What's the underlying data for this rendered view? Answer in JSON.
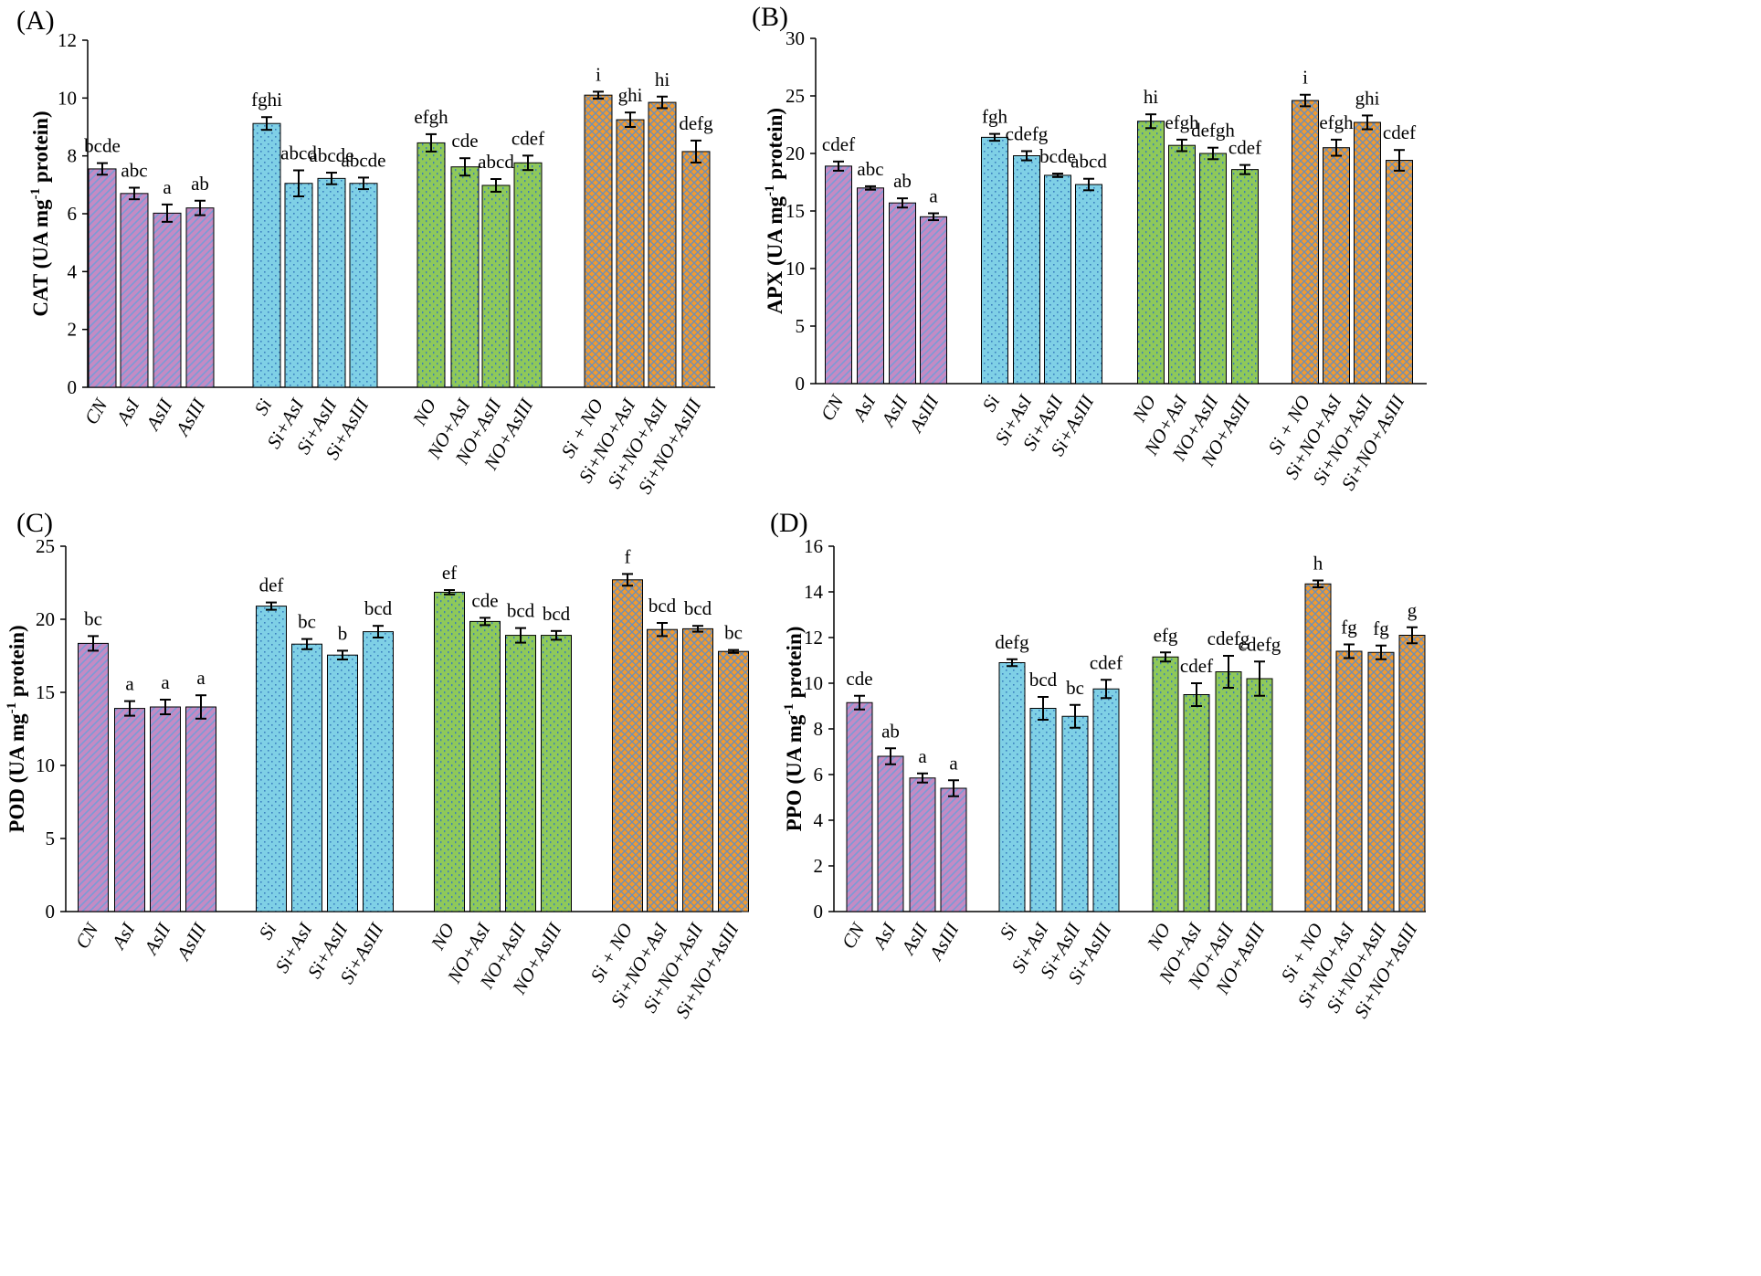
{
  "figure": {
    "categories": [
      "CN",
      "AsI",
      "AsII",
      "AsIII",
      "Si",
      "Si+AsI",
      "Si+AsII",
      "Si+AsIII",
      "NO",
      "NO+AsI",
      "NO+AsII",
      "NO+AsIII",
      "Si + NO",
      "Si+NO+AsI",
      "Si+NO+AsII",
      "Si+NO+AsIII"
    ],
    "groups": [
      {
        "name": "As",
        "color": "#c48bc4",
        "hatch": "#7a9bd6",
        "pattern": "diag"
      },
      {
        "name": "Si",
        "color": "#7fd0e6",
        "hatch": "#3a7fbf",
        "pattern": "dots"
      },
      {
        "name": "NO",
        "color": "#8fc95a",
        "hatch": "#3c7fb8",
        "pattern": "vdots"
      },
      {
        "name": "Si+NO",
        "color": "#f39a2e",
        "hatch": "#6f8fb5",
        "pattern": "cross"
      }
    ]
  },
  "chart_data": [
    {
      "panel": "(A)",
      "type": "bar",
      "ylabel_main": "CAT (UA mg",
      "ylabel_sup": "-1",
      "ylabel_end": " protein)",
      "ylim": [
        0,
        12
      ],
      "yticks": [
        "0",
        "2",
        "4",
        "6",
        "8",
        "10",
        "12"
      ],
      "values": [
        7.55,
        6.7,
        6.02,
        6.2,
        9.12,
        7.05,
        7.22,
        7.05,
        8.45,
        7.62,
        6.98,
        7.76,
        10.1,
        9.25,
        9.85,
        8.15
      ],
      "errors": [
        0.2,
        0.2,
        0.3,
        0.25,
        0.22,
        0.45,
        0.2,
        0.2,
        0.3,
        0.3,
        0.22,
        0.25,
        0.12,
        0.25,
        0.2,
        0.38
      ],
      "labels": [
        "bcde",
        "abc",
        "a",
        "ab",
        "fghi",
        "abcd",
        "abcde",
        "abcde",
        "efgh",
        "cde",
        "abcd",
        "cdef",
        "i",
        "ghi",
        "hi",
        "defg"
      ]
    },
    {
      "panel": "(B)",
      "type": "bar",
      "ylabel_main": "APX (UA mg",
      "ylabel_sup": "-1",
      "ylabel_end": " protein)",
      "ylim": [
        0,
        30
      ],
      "yticks": [
        "0",
        "5",
        "10",
        "15",
        "20",
        "25",
        "30"
      ],
      "values": [
        18.9,
        17.0,
        15.7,
        14.5,
        21.4,
        19.8,
        18.1,
        17.3,
        22.8,
        20.7,
        20.0,
        18.6,
        24.6,
        20.5,
        22.7,
        19.4
      ],
      "errors": [
        0.4,
        0.15,
        0.4,
        0.3,
        0.3,
        0.4,
        0.15,
        0.5,
        0.6,
        0.5,
        0.5,
        0.4,
        0.5,
        0.7,
        0.6,
        0.9
      ],
      "labels": [
        "cdef",
        "abc",
        "ab",
        "a",
        "fgh",
        "cdefg",
        "bcde",
        "abcd",
        "hi",
        "efgh",
        "defgh",
        "cdef",
        "i",
        "efgh",
        "ghi",
        "cdef"
      ]
    },
    {
      "panel": "(C)",
      "type": "bar",
      "ylabel_main": "POD (UA mg",
      "ylabel_sup": "-1",
      "ylabel_end": " protein)",
      "ylim": [
        0,
        25
      ],
      "yticks": [
        "0",
        "5",
        "10",
        "15",
        "20",
        "25"
      ],
      "values": [
        18.35,
        13.9,
        14.0,
        14.0,
        20.9,
        18.3,
        17.55,
        19.15,
        21.85,
        19.85,
        18.9,
        18.9,
        22.7,
        19.3,
        19.35,
        17.8
      ],
      "errors": [
        0.5,
        0.5,
        0.5,
        0.8,
        0.25,
        0.35,
        0.3,
        0.4,
        0.15,
        0.25,
        0.5,
        0.3,
        0.4,
        0.45,
        0.2,
        0.1
      ],
      "labels": [
        "bc",
        "a",
        "a",
        "a",
        "def",
        "bc",
        "b",
        "bcd",
        "ef",
        "cde",
        "bcd",
        "bcd",
        "f",
        "bcd",
        "bcd",
        "bc"
      ]
    },
    {
      "panel": "(D)",
      "type": "bar",
      "ylabel_main": "PPO (UA mg",
      "ylabel_sup": "-1",
      "ylabel_end": " protein)",
      "ylim": [
        0,
        16
      ],
      "yticks": [
        "0",
        "2",
        "4",
        "6",
        "8",
        "10",
        "12",
        "14",
        "16"
      ],
      "values": [
        9.15,
        6.8,
        5.85,
        5.4,
        10.9,
        8.9,
        8.55,
        9.75,
        11.15,
        9.5,
        10.5,
        10.2,
        14.35,
        11.4,
        11.35,
        12.1
      ],
      "errors": [
        0.3,
        0.35,
        0.2,
        0.35,
        0.15,
        0.5,
        0.5,
        0.4,
        0.2,
        0.5,
        0.7,
        0.75,
        0.15,
        0.3,
        0.3,
        0.35
      ],
      "labels": [
        "cde",
        "ab",
        "a",
        "a",
        "defg",
        "bcd",
        "bc",
        "cdef",
        "efg",
        "cdef",
        "cdefg",
        "cdefg",
        "h",
        "fg",
        "fg",
        "g"
      ]
    }
  ]
}
